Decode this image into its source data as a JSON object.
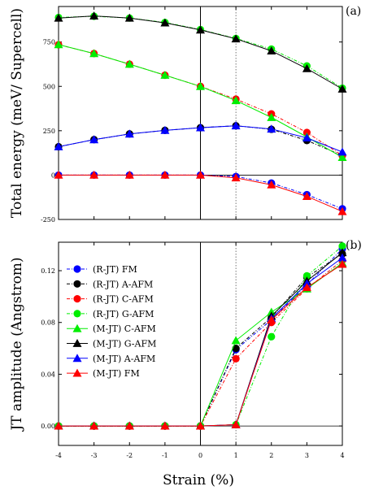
{
  "chart_data": [
    {
      "type": "line",
      "panel_label": "(a)",
      "ylabel": "Total energy (meV/ Supercell)",
      "xlabel": "",
      "x": [
        -4,
        -3,
        -2,
        -1,
        0,
        1,
        2,
        3,
        4
      ],
      "xlim": [
        -4,
        4
      ],
      "ylim": [
        -250,
        950
      ],
      "yticks": [
        -250,
        0,
        250,
        500,
        750
      ],
      "xticks": [
        -4,
        -3,
        -2,
        -1,
        0,
        1,
        2,
        3,
        4
      ],
      "vertical_lines": [
        {
          "x": 0,
          "style": "solid"
        },
        {
          "x": 1,
          "style": "dotted"
        }
      ],
      "grid": false,
      "series": [
        {
          "key": "rjt-fm",
          "color": "#0000ff",
          "marker": "circle",
          "linestyle": "dashdot",
          "values": [
            0,
            0,
            0,
            0,
            0,
            -8,
            -45,
            -110,
            -190
          ]
        },
        {
          "key": "rjt-aafm",
          "color": "#000000",
          "marker": "circle",
          "linestyle": "dashdot",
          "values": [
            160,
            200,
            232,
            252,
            267,
            278,
            258,
            195,
            110
          ]
        },
        {
          "key": "rjt-cafm",
          "color": "#ff0000",
          "marker": "circle",
          "linestyle": "dashdot",
          "values": [
            735,
            685,
            625,
            563,
            500,
            428,
            345,
            240,
            110
          ]
        },
        {
          "key": "rjt-gafm",
          "color": "#00ee00",
          "marker": "circle",
          "linestyle": "dashdot",
          "values": [
            888,
            895,
            885,
            860,
            820,
            770,
            710,
            615,
            490
          ]
        },
        {
          "key": "mjt-cafm",
          "color": "#00ee00",
          "marker": "triangle",
          "linestyle": "solid",
          "values": [
            735,
            685,
            625,
            563,
            500,
            420,
            325,
            215,
            100
          ]
        },
        {
          "key": "mjt-gafm",
          "color": "#000000",
          "marker": "triangle",
          "linestyle": "solid",
          "values": [
            885,
            897,
            885,
            858,
            818,
            768,
            700,
            600,
            485
          ]
        },
        {
          "key": "mjt-aafm",
          "color": "#0000ff",
          "marker": "triangle",
          "linestyle": "solid",
          "values": [
            160,
            200,
            232,
            252,
            267,
            278,
            260,
            210,
            130
          ]
        },
        {
          "key": "mjt-fm",
          "color": "#ff0000",
          "marker": "triangle",
          "linestyle": "solid",
          "values": [
            0,
            0,
            0,
            0,
            0,
            -15,
            -55,
            -120,
            -205
          ]
        }
      ]
    },
    {
      "type": "line",
      "panel_label": "(b)",
      "ylabel": "JT amplitude (Angstrom)",
      "xlabel": "Strain (%)",
      "x": [
        -4,
        -3,
        -2,
        -1,
        0,
        1,
        2,
        3,
        4
      ],
      "xlim": [
        -4,
        4
      ],
      "ylim": [
        -0.015,
        0.142
      ],
      "yticks": [
        0.0,
        0.04,
        0.08,
        0.12
      ],
      "ytick_labels": [
        "0.00",
        "0.04",
        "0.08",
        "0.12"
      ],
      "xticks": [
        -4,
        -3,
        -2,
        -1,
        0,
        1,
        2,
        3,
        4
      ],
      "vertical_lines": [
        {
          "x": 0,
          "style": "solid"
        },
        {
          "x": 1,
          "style": "dotted"
        }
      ],
      "grid": false,
      "legend_position": "top-left",
      "series": [
        {
          "name": "(R-JT) FM",
          "color": "#0000ff",
          "marker": "circle",
          "linestyle": "dashdot",
          "values": [
            0,
            0,
            0,
            0,
            0,
            0.059,
            0.082,
            0.109,
            0.137
          ]
        },
        {
          "name": "(R-JT) A-AFM",
          "color": "#000000",
          "marker": "circle",
          "linestyle": "dashdot",
          "values": [
            0,
            0,
            0,
            0,
            0,
            0.06,
            0.084,
            0.115,
            0.133
          ]
        },
        {
          "name": "(R-JT) C-AFM",
          "color": "#ff0000",
          "marker": "circle",
          "linestyle": "dashdot",
          "values": [
            0,
            0,
            0,
            0,
            0,
            0.052,
            0.08,
            0.106,
            0.128
          ]
        },
        {
          "name": "(R-JT) G-AFM",
          "color": "#00ee00",
          "marker": "circle",
          "linestyle": "dashdot",
          "values": [
            0,
            0,
            0,
            0,
            0,
            0.001,
            0.069,
            0.116,
            0.139
          ]
        },
        {
          "name": "(M-JT) C-AFM",
          "color": "#00ee00",
          "marker": "triangle",
          "linestyle": "solid",
          "values": [
            0,
            0,
            0,
            0,
            0,
            0.066,
            0.088,
            0.106,
            0.126
          ]
        },
        {
          "name": "(M-JT) G-AFM",
          "color": "#000000",
          "marker": "triangle",
          "linestyle": "solid",
          "values": [
            0,
            0,
            0,
            0,
            0,
            0.001,
            0.085,
            0.112,
            0.134
          ]
        },
        {
          "name": "(M-JT) A-AFM",
          "color": "#0000ff",
          "marker": "triangle",
          "linestyle": "solid",
          "values": [
            0,
            0,
            0,
            0,
            0,
            0.001,
            0.083,
            0.11,
            0.13
          ]
        },
        {
          "name": "(M-JT) FM",
          "color": "#ff0000",
          "marker": "triangle",
          "linestyle": "solid",
          "values": [
            0,
            0,
            0,
            0,
            0,
            0.001,
            0.082,
            0.107,
            0.125
          ]
        }
      ]
    }
  ]
}
